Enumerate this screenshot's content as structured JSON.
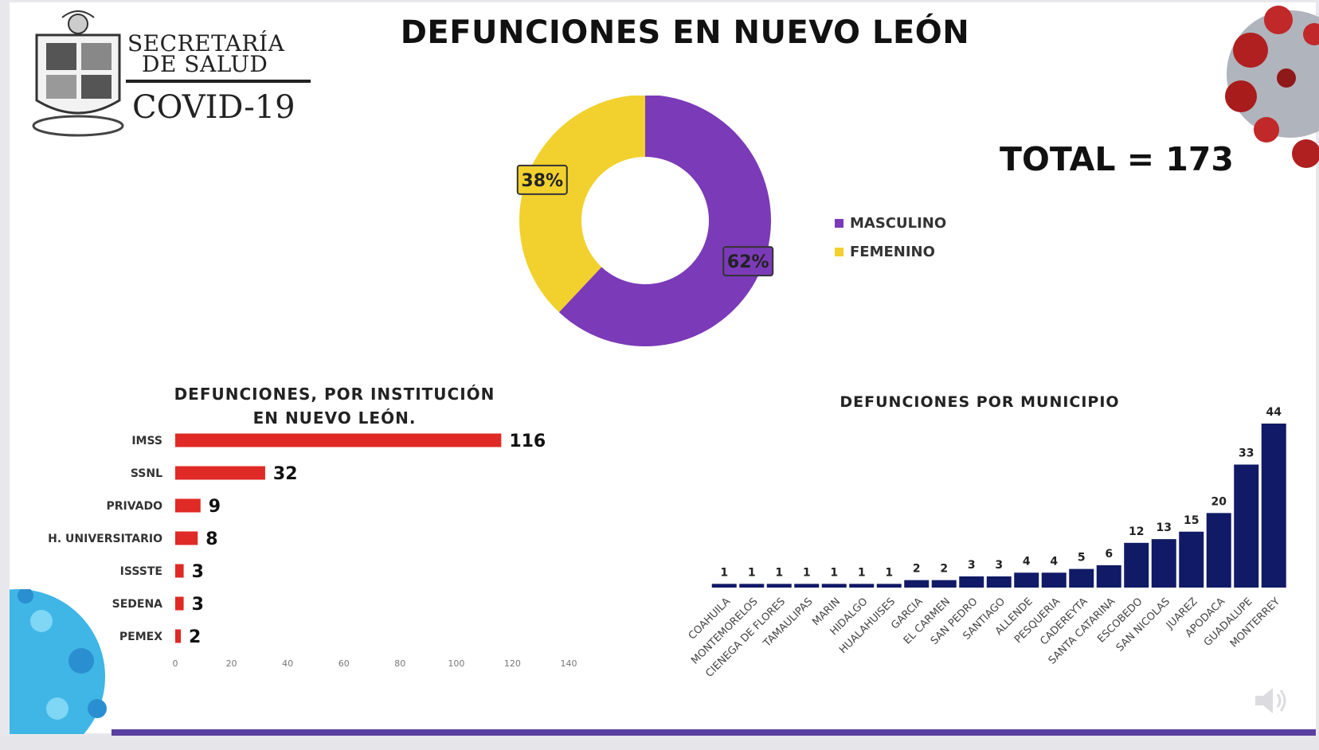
{
  "header": {
    "org_line1": "SECRETARÍA",
    "org_line2": "DE SALUD",
    "org_line3": "COVID-19",
    "title": "DEFUNCIONES EN NUEVO LEÓN",
    "total": "TOTAL = 173"
  },
  "colors": {
    "masculino": "#7b3ab8",
    "femenino": "#f2d12e",
    "institution_bar": "#e02a25",
    "municipio_bar": "#111a66",
    "bottom_bar": "#5a3fa0"
  },
  "chart_data": [
    {
      "type": "pie",
      "title": "",
      "donut": true,
      "legend_position": "right",
      "slices": [
        {
          "label": "MASCULINO",
          "value": 62,
          "display": "62%"
        },
        {
          "label": "FEMENINO",
          "value": 38,
          "display": "38%"
        }
      ]
    },
    {
      "type": "bar",
      "orientation": "horizontal",
      "title": "DEFUNCIONES, POR INSTITUCIÓN EN NUEVO LEÓN.",
      "categories": [
        "IMSS",
        "SSNL",
        "PRIVADO",
        "H. UNIVERSITARIO",
        "ISSSTE",
        "SEDENA",
        "PEMEX"
      ],
      "values": [
        116,
        32,
        9,
        8,
        3,
        3,
        2
      ],
      "xlim": [
        0,
        140
      ],
      "xticks": [
        0,
        20,
        40,
        60,
        80,
        100,
        120,
        140
      ],
      "grid": false
    },
    {
      "type": "bar",
      "orientation": "vertical",
      "title": "DEFUNCIONES POR MUNICIPIO",
      "categories": [
        "COAHUILA",
        "MONTEMORELOS",
        "CIENEGA DE FLORES",
        "TAMAULIPAS",
        "MARIN",
        "HIDALGO",
        "HUALAHUISES",
        "GARCIA",
        "EL CARMEN",
        "SAN PEDRO",
        "SANTIAGO",
        "ALLENDE",
        "PESQUERIA",
        "CADEREYTA",
        "SANTA CATARINA",
        "ESCOBEDO",
        "SAN NICOLAS",
        "JUAREZ",
        "APODACA",
        "GUADALUPE",
        "MONTERREY"
      ],
      "values": [
        1,
        1,
        1,
        1,
        1,
        1,
        1,
        2,
        2,
        3,
        3,
        4,
        4,
        5,
        6,
        12,
        13,
        15,
        20,
        33,
        44
      ],
      "ylim": [
        0,
        44
      ],
      "grid": false
    }
  ]
}
